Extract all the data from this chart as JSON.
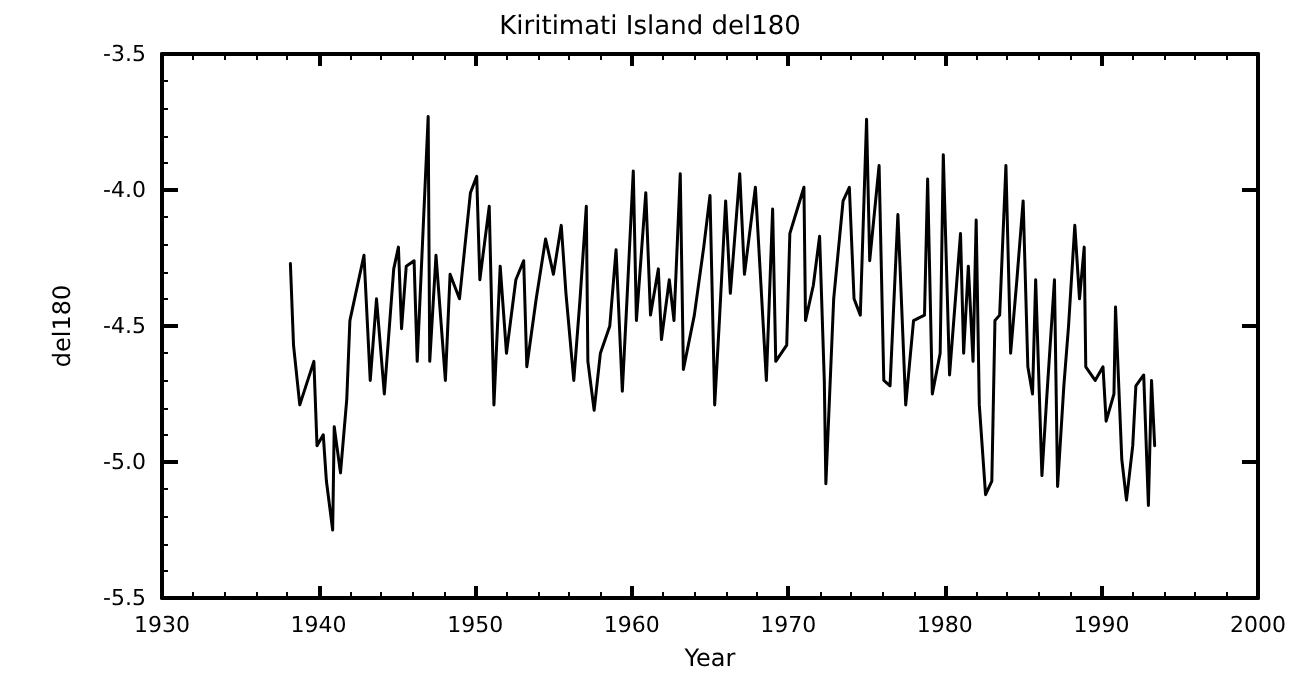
{
  "chart_data": {
    "type": "line",
    "title": "Kiritimati Island del180",
    "xlabel": "Year",
    "ylabel": "del180",
    "xlim": [
      1930,
      2000
    ],
    "xticks": [
      1930,
      1940,
      1950,
      1960,
      1970,
      1980,
      1990,
      2000
    ],
    "ylim": [
      -5.5,
      -3.5
    ],
    "yticks": [
      -5.5,
      {
        "value": -5,
        "label": "-5.0"
      },
      -4.5,
      {
        "value": -4,
        "label": "-4.0"
      },
      -3.5
    ],
    "grid": false,
    "marker": "none",
    "line_style": "solid",
    "series": [
      {
        "color": "#000000",
        "x": [
          1938.2,
          1938.4,
          1938.8,
          1939.7,
          1939.9,
          1940.3,
          1940.5,
          1940.9,
          1941.0,
          1941.4,
          1941.8,
          1942.0,
          1942.9,
          1943.3,
          1943.7,
          1944.2,
          1944.8,
          1945.1,
          1945.3,
          1945.6,
          1946.1,
          1946.3,
          1947.0,
          1947.1,
          1947.5,
          1948.1,
          1948.4,
          1949.0,
          1949.7,
          1950.1,
          1950.3,
          1950.9,
          1951.2,
          1951.6,
          1952.0,
          1952.6,
          1953.1,
          1953.3,
          1953.9,
          1954.5,
          1955.0,
          1955.5,
          1955.8,
          1956.3,
          1956.7,
          1957.1,
          1957.2,
          1957.6,
          1958.0,
          1958.6,
          1959.0,
          1959.4,
          1959.7,
          1960.1,
          1960.3,
          1960.9,
          1961.2,
          1961.7,
          1961.9,
          1962.4,
          1962.7,
          1963.1,
          1963.3,
          1964.0,
          1964.6,
          1965.0,
          1965.3,
          1965.6,
          1966.0,
          1966.3,
          1966.9,
          1967.2,
          1967.9,
          1968.6,
          1969.0,
          1969.2,
          1969.9,
          1970.1,
          1971.0,
          1971.1,
          1971.6,
          1972.0,
          1972.3,
          1972.4,
          1972.9,
          1973.5,
          1973.9,
          1974.2,
          1974.6,
          1975.0,
          1975.2,
          1975.8,
          1976.1,
          1976.5,
          1977.0,
          1977.5,
          1978.0,
          1978.7,
          1978.9,
          1979.2,
          1979.7,
          1979.9,
          1980.3,
          1981.0,
          1981.2,
          1981.5,
          1981.8,
          1982.0,
          1982.2,
          1982.6,
          1983.0,
          1983.2,
          1983.5,
          1983.9,
          1984.2,
          1984.6,
          1985.0,
          1985.3,
          1985.6,
          1985.8,
          1986.2,
          1986.5,
          1987.0,
          1987.2,
          1987.6,
          1987.9,
          1988.3,
          1988.6,
          1988.9,
          1989.0,
          1989.6,
          1990.1,
          1990.3,
          1990.8,
          1990.9,
          1991.3,
          1991.6,
          1992.0,
          1992.2,
          1992.7,
          1993.0,
          1993.2,
          1993.4
        ],
        "values": [
          -4.27,
          -4.57,
          -4.79,
          -4.63,
          -4.94,
          -4.9,
          -5.07,
          -5.25,
          -4.87,
          -5.04,
          -4.77,
          -4.48,
          -4.24,
          -4.7,
          -4.4,
          -4.75,
          -4.29,
          -4.21,
          -4.51,
          -4.28,
          -4.26,
          -4.63,
          -3.73,
          -4.63,
          -4.24,
          -4.7,
          -4.31,
          -4.4,
          -4.01,
          -3.95,
          -4.33,
          -4.06,
          -4.79,
          -4.28,
          -4.6,
          -4.33,
          -4.26,
          -4.65,
          -4.4,
          -4.18,
          -4.31,
          -4.13,
          -4.38,
          -4.7,
          -4.4,
          -4.06,
          -4.63,
          -4.81,
          -4.6,
          -4.5,
          -4.22,
          -4.74,
          -4.4,
          -3.93,
          -4.48,
          -4.01,
          -4.46,
          -4.29,
          -4.55,
          -4.33,
          -4.48,
          -3.94,
          -4.66,
          -4.46,
          -4.21,
          -4.02,
          -4.79,
          -4.48,
          -4.04,
          -4.38,
          -3.94,
          -4.31,
          -3.99,
          -4.7,
          -4.07,
          -4.63,
          -4.57,
          -4.16,
          -3.99,
          -4.48,
          -4.35,
          -4.17,
          -4.7,
          -5.08,
          -4.4,
          -4.04,
          -3.99,
          -4.4,
          -4.46,
          -3.74,
          -4.26,
          -3.91,
          -4.7,
          -4.72,
          -4.09,
          -4.79,
          -4.48,
          -4.46,
          -3.96,
          -4.75,
          -4.6,
          -3.87,
          -4.68,
          -4.16,
          -4.6,
          -4.28,
          -4.63,
          -4.11,
          -4.79,
          -5.12,
          -5.07,
          -4.48,
          -4.46,
          -3.91,
          -4.6,
          -4.33,
          -4.04,
          -4.65,
          -4.75,
          -4.33,
          -5.05,
          -4.77,
          -4.33,
          -5.09,
          -4.72,
          -4.5,
          -4.13,
          -4.4,
          -4.21,
          -4.65,
          -4.7,
          -4.65,
          -4.85,
          -4.75,
          -4.43,
          -4.99,
          -5.14,
          -4.94,
          -4.72,
          -4.68,
          -5.16,
          -4.7,
          -4.94
        ]
      }
    ]
  }
}
